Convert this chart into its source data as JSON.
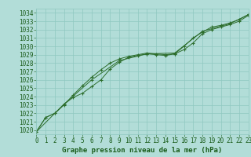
{
  "title": "Graphe pression niveau de la mer (hPa)",
  "background_color": "#b2ddd8",
  "grid_color": "#8fc8c0",
  "line_color": "#2d6e2d",
  "marker_color": "#2d6e2d",
  "xlim": [
    0,
    23
  ],
  "ylim": [
    1019.5,
    1034.5
  ],
  "yticks": [
    1020,
    1021,
    1022,
    1023,
    1024,
    1025,
    1026,
    1027,
    1028,
    1029,
    1030,
    1031,
    1032,
    1033,
    1034
  ],
  "xticks": [
    0,
    1,
    2,
    3,
    4,
    5,
    6,
    7,
    8,
    9,
    10,
    11,
    12,
    13,
    14,
    15,
    16,
    17,
    18,
    19,
    20,
    21,
    22,
    23
  ],
  "series": [
    {
      "x": [
        0,
        1,
        2,
        3,
        4,
        5,
        6,
        7,
        8,
        9,
        10,
        11,
        12,
        13,
        14,
        15,
        16,
        17,
        18,
        19,
        20,
        21,
        22,
        23
      ],
      "y": [
        1019.8,
        1021.5,
        1022.0,
        1023.0,
        1024.2,
        1025.3,
        1026.3,
        1027.2,
        1028.0,
        1028.5,
        1028.8,
        1029.0,
        1029.2,
        1029.1,
        1029.0,
        1029.1,
        1030.0,
        1031.0,
        1031.7,
        1032.3,
        1032.5,
        1032.8,
        1033.2,
        1033.8
      ]
    },
    {
      "x": [
        0,
        1,
        2,
        3,
        4,
        5,
        6,
        7,
        8,
        9,
        10,
        11,
        12,
        13,
        14,
        15,
        16,
        17,
        18,
        19,
        20,
        21,
        22,
        23
      ],
      "y": [
        1019.8,
        1021.5,
        1022.0,
        1023.1,
        1023.9,
        1024.4,
        1025.2,
        1026.0,
        1027.3,
        1028.1,
        1028.7,
        1028.9,
        1029.1,
        1029.0,
        1028.9,
        1029.1,
        1029.6,
        1030.4,
        1031.5,
        1032.0,
        1032.3,
        1032.6,
        1033.0,
        1033.7
      ]
    },
    {
      "x": [
        0,
        3,
        6,
        9,
        12,
        15,
        18,
        21,
        23
      ],
      "y": [
        1019.8,
        1023.1,
        1026.0,
        1028.3,
        1029.1,
        1029.2,
        1031.8,
        1032.7,
        1033.8
      ]
    }
  ],
  "font_color": "#1a5c1a",
  "tick_fontsize": 5.5,
  "title_fontsize": 6.5
}
